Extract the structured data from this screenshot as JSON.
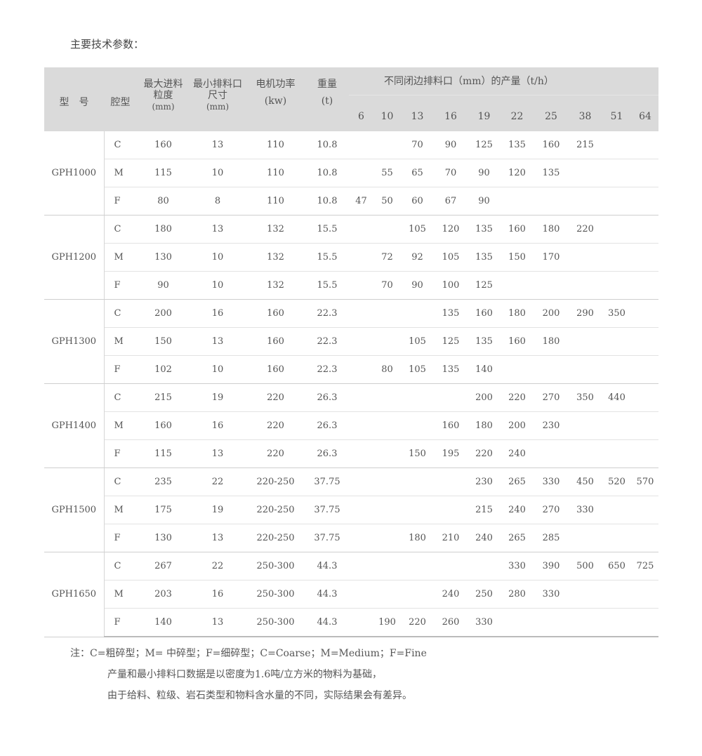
{
  "title": "主要技术参数：",
  "table": {
    "headers": {
      "model": "型　号",
      "cavity": "腔型",
      "feed": [
        "最大进料",
        "粒度",
        "(mm)"
      ],
      "min_opening": [
        "最小排料口",
        "尺寸",
        "(mm)"
      ],
      "power": [
        "电机功率",
        "(kw)"
      ],
      "weight": [
        "重量",
        "(t)"
      ],
      "output_group": "不同闭边排料口（mm）的产量（t/h）",
      "output_sizes": [
        "6",
        "10",
        "13",
        "16",
        "19",
        "22",
        "25",
        "38",
        "51",
        "64"
      ]
    },
    "models": [
      {
        "name": "GPH1000",
        "rows": [
          {
            "cavity": "C",
            "feed": "160",
            "min": "13",
            "power": "110",
            "weight": "10.8",
            "out": [
              "",
              "",
              "70",
              "90",
              "125",
              "135",
              "160",
              "215",
              "",
              ""
            ]
          },
          {
            "cavity": "M",
            "feed": "115",
            "min": "10",
            "power": "110",
            "weight": "10.8",
            "out": [
              "",
              "55",
              "65",
              "70",
              "90",
              "120",
              "135",
              "",
              "",
              ""
            ]
          },
          {
            "cavity": "F",
            "feed": "80",
            "min": "8",
            "power": "110",
            "weight": "10.8",
            "out": [
              "47",
              "50",
              "60",
              "67",
              "90",
              "",
              "",
              "",
              "",
              ""
            ]
          }
        ]
      },
      {
        "name": "GPH1200",
        "rows": [
          {
            "cavity": "C",
            "feed": "180",
            "min": "13",
            "power": "132",
            "weight": "15.5",
            "out": [
              "",
              "",
              "105",
              "120",
              "135",
              "160",
              "180",
              "220",
              "",
              ""
            ]
          },
          {
            "cavity": "M",
            "feed": "130",
            "min": "10",
            "power": "132",
            "weight": "15.5",
            "out": [
              "",
              "72",
              "92",
              "105",
              "135",
              "150",
              "170",
              "",
              "",
              ""
            ]
          },
          {
            "cavity": "F",
            "feed": "90",
            "min": "10",
            "power": "132",
            "weight": "15.5",
            "out": [
              "",
              "70",
              "90",
              "100",
              "125",
              "",
              "",
              "",
              "",
              ""
            ]
          }
        ]
      },
      {
        "name": "GPH1300",
        "rows": [
          {
            "cavity": "C",
            "feed": "200",
            "min": "16",
            "power": "160",
            "weight": "22.3",
            "out": [
              "",
              "",
              "",
              "135",
              "160",
              "180",
              "200",
              "290",
              "350",
              ""
            ]
          },
          {
            "cavity": "M",
            "feed": "150",
            "min": "13",
            "power": "160",
            "weight": "22.3",
            "out": [
              "",
              "",
              "105",
              "125",
              "135",
              "160",
              "180",
              "",
              "",
              ""
            ]
          },
          {
            "cavity": "F",
            "feed": "102",
            "min": "10",
            "power": "160",
            "weight": "22.3",
            "out": [
              "",
              "80",
              "105",
              "135",
              "140",
              "",
              "",
              "",
              "",
              ""
            ]
          }
        ]
      },
      {
        "name": "GPH1400",
        "rows": [
          {
            "cavity": "C",
            "feed": "215",
            "min": "19",
            "power": "220",
            "weight": "26.3",
            "out": [
              "",
              "",
              "",
              "",
              "200",
              "220",
              "270",
              "350",
              "440",
              ""
            ]
          },
          {
            "cavity": "M",
            "feed": "160",
            "min": "16",
            "power": "220",
            "weight": "26.3",
            "out": [
              "",
              "",
              "",
              "160",
              "180",
              "200",
              "230",
              "",
              "",
              ""
            ]
          },
          {
            "cavity": "F",
            "feed": "115",
            "min": "13",
            "power": "220",
            "weight": "26.3",
            "out": [
              "",
              "",
              "150",
              "195",
              "220",
              "240",
              "",
              "",
              "",
              ""
            ]
          }
        ]
      },
      {
        "name": "GPH1500",
        "rows": [
          {
            "cavity": "C",
            "feed": "235",
            "min": "22",
            "power": "220-250",
            "weight": "37.75",
            "out": [
              "",
              "",
              "",
              "",
              "230",
              "265",
              "330",
              "450",
              "520",
              "570"
            ]
          },
          {
            "cavity": "M",
            "feed": "175",
            "min": "19",
            "power": "220-250",
            "weight": "37.75",
            "out": [
              "",
              "",
              "",
              "",
              "215",
              "240",
              "270",
              "330",
              "",
              ""
            ]
          },
          {
            "cavity": "F",
            "feed": "130",
            "min": "13",
            "power": "220-250",
            "weight": "37.75",
            "out": [
              "",
              "",
              "180",
              "210",
              "240",
              "265",
              "285",
              "",
              "",
              ""
            ]
          }
        ]
      },
      {
        "name": "GPH1650",
        "rows": [
          {
            "cavity": "C",
            "feed": "267",
            "min": "22",
            "power": "250-300",
            "weight": "44.3",
            "out": [
              "",
              "",
              "",
              "",
              "",
              "330",
              "390",
              "500",
              "650",
              "725"
            ]
          },
          {
            "cavity": "M",
            "feed": "203",
            "min": "16",
            "power": "250-300",
            "weight": "44.3",
            "out": [
              "",
              "",
              "",
              "240",
              "250",
              "280",
              "330",
              "",
              "",
              ""
            ]
          },
          {
            "cavity": "F",
            "feed": "140",
            "min": "13",
            "power": "250-300",
            "weight": "44.3",
            "out": [
              "",
              "190",
              "220",
              "260",
              "330",
              "",
              "",
              "",
              "",
              ""
            ]
          }
        ]
      }
    ]
  },
  "notes": [
    "注：C=粗碎型；M= 中碎型；F=细碎型；C=Coarse；M=Medium；F=Fine",
    "产量和最小排料口数据是以密度为1.6吨/立方米的物料为基础，",
    "由于给料、粒级、岩石类型和物料含水量的不同，实际结果会有差异。"
  ]
}
